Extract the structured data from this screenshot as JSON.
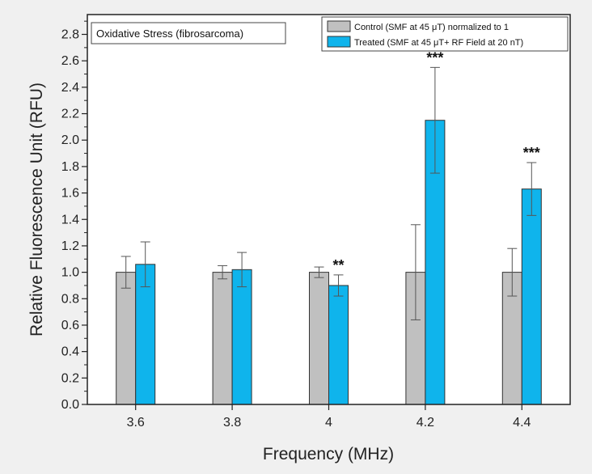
{
  "chart_data": {
    "type": "bar",
    "title": "Oxidative Stress (fibrosarcoma)",
    "xlabel": "Frequency (MHz)",
    "ylabel": "Relative Fluorescence Unit (RFU)",
    "categories": [
      "3.6",
      "3.8",
      "4",
      "4.2",
      "4.4"
    ],
    "ylim": [
      0,
      2.95
    ],
    "yticks": [
      "0.0",
      "0.2",
      "0.4",
      "0.6",
      "0.8",
      "1.0",
      "1.2",
      "1.4",
      "1.6",
      "1.8",
      "2.0",
      "2.2",
      "2.4",
      "2.6",
      "2.8"
    ],
    "grid": false,
    "legend_position": "top-right",
    "series": [
      {
        "name": "Control  (SMF at 45 μT) normalized to 1",
        "color": "#c0c0c0",
        "values": [
          1.0,
          1.0,
          1.0,
          1.0,
          1.0
        ],
        "errors": [
          0.12,
          0.05,
          0.04,
          0.36,
          0.18
        ],
        "significance": [
          "",
          "",
          "",
          "",
          ""
        ]
      },
      {
        "name": "Treated (SMF at 45 μT+ RF Field at 20 nT)",
        "color": "#0fb4ec",
        "values": [
          1.06,
          1.02,
          0.9,
          2.15,
          1.63
        ],
        "errors": [
          0.17,
          0.13,
          0.08,
          0.4,
          0.2
        ],
        "significance": [
          "",
          "",
          "**",
          "***",
          "***"
        ]
      }
    ]
  }
}
